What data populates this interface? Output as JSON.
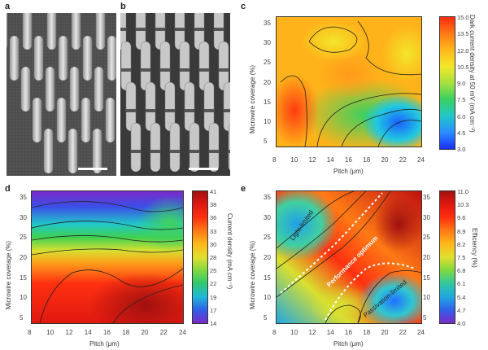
{
  "panels": {
    "a": {
      "letter": "a"
    },
    "b": {
      "letter": "b"
    },
    "c": {
      "letter": "c",
      "xlabel": "Pitch (μm)",
      "ylabel": "Microwire coverage (%)",
      "cbar_label": "Dark current density at 50 mV (mA cm⁻²)",
      "xticks": [
        "8",
        "10",
        "12",
        "14",
        "16",
        "18",
        "20",
        "22",
        "24"
      ],
      "yticks": [
        "35",
        "30",
        "25",
        "20",
        "15",
        "10",
        "5"
      ],
      "cbar_ticks": [
        "15.0",
        "13.5",
        "12.0",
        "10.5",
        "9.0",
        "7.5",
        "6.0",
        "4.5",
        "3.0"
      ]
    },
    "d": {
      "letter": "d",
      "xlabel": "Pitch (μm)",
      "ylabel": "Microwire coverage (%)",
      "cbar_label": "Current density (mA cm⁻²)",
      "xticks": [
        "8",
        "10",
        "12",
        "14",
        "16",
        "18",
        "20",
        "22",
        "24"
      ],
      "yticks": [
        "35",
        "30",
        "25",
        "20",
        "15",
        "10",
        "5"
      ],
      "cbar_ticks": [
        "41",
        "38",
        "36",
        "33",
        "30",
        "28",
        "25",
        "22",
        "19",
        "17",
        "14"
      ]
    },
    "e": {
      "letter": "e",
      "xlabel": "Pitch (μm)",
      "ylabel": "Microwire coverage (%)",
      "cbar_label": "Efficiency (%)",
      "xticks": [
        "8",
        "10",
        "12",
        "14",
        "16",
        "18",
        "20",
        "22",
        "24"
      ],
      "yticks": [
        "35",
        "30",
        "25",
        "20",
        "15",
        "10",
        "5"
      ],
      "right_yticks": [
        "35",
        "30",
        "25",
        "20",
        "15",
        "10",
        "5"
      ],
      "cbar_ticks": [
        "11.0",
        "10.3",
        "9.6",
        "8.9",
        "8.2",
        "7.5",
        "6.8",
        "6.1",
        "5.4",
        "4.7",
        "4.0"
      ],
      "annotations": {
        "light_limited": "Light-limited",
        "optimum": "Performance optimum",
        "passivation_limited": "Passivation-limited"
      }
    }
  }
}
